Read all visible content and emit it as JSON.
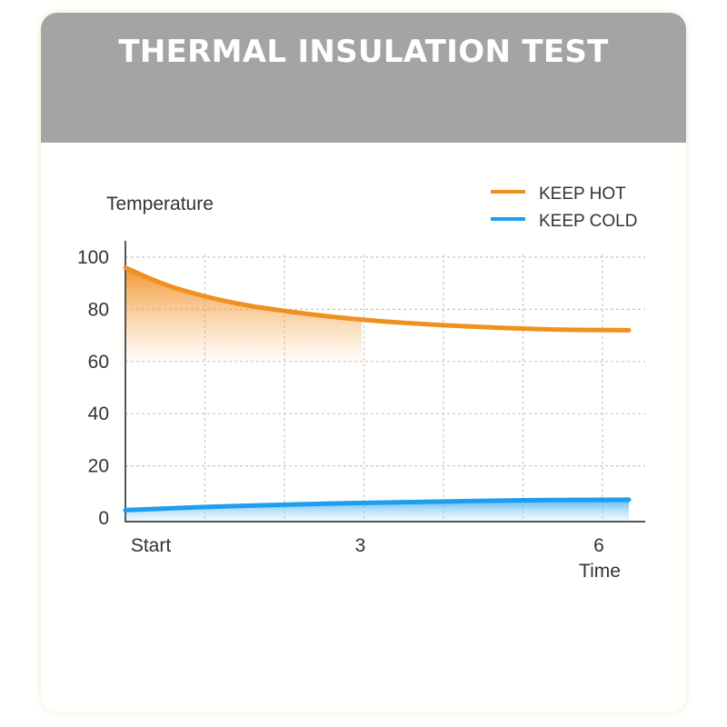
{
  "header": {
    "title": "THERMAL INSULATION TEST"
  },
  "colors": {
    "header_bg": "#a4a4a4",
    "hot": "#f0901e",
    "cold": "#1e9ef0",
    "axis": "#555555",
    "grid": "#c8c8c8"
  },
  "chart_data": {
    "type": "line",
    "title": "",
    "xlabel": "Time",
    "ylabel": "Temperature",
    "xlim": [
      0,
      6.4
    ],
    "ylim": [
      0,
      100
    ],
    "x_ticks": [
      {
        "value": 0,
        "label": "Start"
      },
      {
        "value": 3,
        "label": "3"
      },
      {
        "value": 6,
        "label": "6"
      }
    ],
    "y_ticks": [
      0,
      20,
      40,
      60,
      80,
      100
    ],
    "grid": true,
    "legend_position": "top-right",
    "series": [
      {
        "name": "KEEP HOT",
        "color": "#f0901e",
        "area_fill": true,
        "x": [
          0,
          0.5,
          1,
          1.5,
          2,
          2.5,
          3,
          3.5,
          4,
          4.5,
          5,
          5.5,
          6
        ],
        "y": [
          96,
          89.5,
          85,
          81.7,
          79.4,
          77.5,
          76,
          74.8,
          73.9,
          73.2,
          72.6,
          72.2,
          72
        ]
      },
      {
        "name": "KEEP COLD",
        "color": "#1e9ef0",
        "area_fill": true,
        "x": [
          0,
          1,
          2,
          3,
          4,
          5,
          6
        ],
        "y": [
          3,
          4.2,
          5.1,
          5.8,
          6.3,
          6.8,
          7
        ]
      }
    ]
  }
}
